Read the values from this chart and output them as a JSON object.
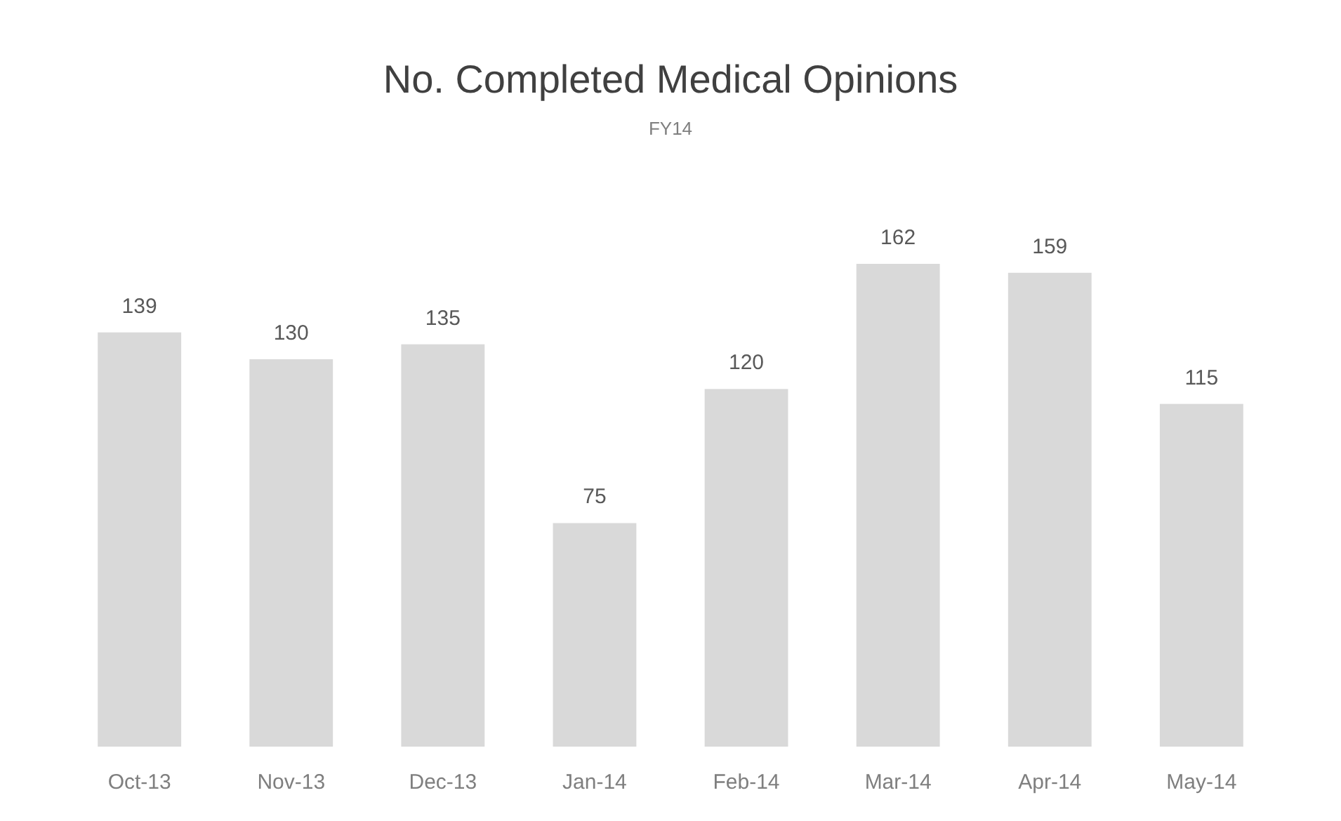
{
  "chart_data": {
    "type": "bar",
    "title": "No. Completed Medical Opinions",
    "subtitle": "FY14",
    "categories": [
      "Oct-13",
      "Nov-13",
      "Dec-13",
      "Jan-14",
      "Feb-14",
      "Mar-14",
      "Apr-14",
      "May-14"
    ],
    "values": [
      139,
      130,
      135,
      75,
      120,
      162,
      159,
      115
    ],
    "color": "#d9d9d9",
    "data_labels": true
  }
}
